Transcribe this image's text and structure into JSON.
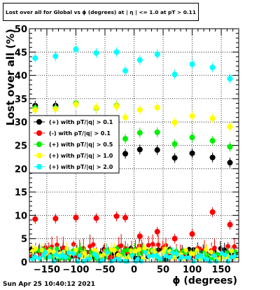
{
  "title": "Lost over all for Global vs ϕ (degrees) at | η | <= 1.0 at pT > 0.11",
  "footer": "Sun Apr 25 10:40:12 2021",
  "chart_data": {
    "type": "scatter",
    "xlabel": "ϕ (degrees)",
    "ylabel": "Lost over all (%)",
    "xlim": [
      -180,
      180
    ],
    "ylim": [
      0,
      50
    ],
    "xticks": [
      -150,
      -100,
      -50,
      0,
      50,
      100,
      150
    ],
    "yticks": [
      0,
      5,
      10,
      15,
      20,
      25,
      30,
      35,
      40,
      45,
      50
    ],
    "grid": true,
    "legend_placement": "center-left",
    "series": [
      {
        "name": "(+) with pT/|q| > 0.1",
        "color": "#000000",
        "x": [
          -170,
          -135,
          -100,
          -65,
          -30,
          -15,
          10,
          40,
          70,
          100,
          135,
          165
        ],
        "y": [
          33.5,
          33.5,
          34,
          33,
          33.5,
          23.2,
          24.1,
          24,
          22.3,
          23.3,
          22.4,
          21.3
        ]
      },
      {
        "name": "(-) with pT/|q| > 0.1",
        "color": "#ff0000",
        "x": [
          -170,
          -135,
          -100,
          -65,
          -30,
          -15,
          10,
          40,
          70,
          100,
          135,
          165
        ],
        "y": [
          9.2,
          9.3,
          9.5,
          9.4,
          9.8,
          9.5,
          5.5,
          6.5,
          5,
          6,
          10.7,
          8
        ]
      },
      {
        "name": "(+) with pT/|q| > 0.5",
        "color": "#00ee00",
        "x": [
          -170,
          -135,
          -100,
          -65,
          -30,
          -15,
          10,
          40,
          70,
          100,
          135,
          165
        ],
        "y": [
          33,
          33,
          34,
          33,
          33.5,
          26.4,
          27.7,
          27.8,
          25.3,
          26.7,
          26,
          24.7
        ]
      },
      {
        "name": "(+) with pT/|q| > 1.0",
        "color": "#ffff00",
        "x": [
          -170,
          -135,
          -100,
          -65,
          -30,
          -15,
          10,
          40,
          70,
          100,
          135,
          165
        ],
        "y": [
          32.6,
          32.8,
          33.8,
          33.1,
          33.4,
          31,
          32.6,
          33.1,
          29.9,
          31.3,
          30.8,
          29
        ]
      },
      {
        "name": "(+) with pT/|q| > 2.0",
        "color": "#00ffff",
        "x": [
          -170,
          -135,
          -100,
          -65,
          -30,
          -15,
          10,
          40,
          70,
          100,
          135,
          165
        ],
        "y": [
          43.7,
          44.1,
          45.6,
          44.8,
          45,
          41,
          43.3,
          44.5,
          40.2,
          42.4,
          41.7,
          39.3
        ]
      }
    ],
    "low_band": {
      "colors": [
        "#000000",
        "#ff0000",
        "#00ee00",
        "#ffff00",
        "#00ffff"
      ]
    }
  }
}
